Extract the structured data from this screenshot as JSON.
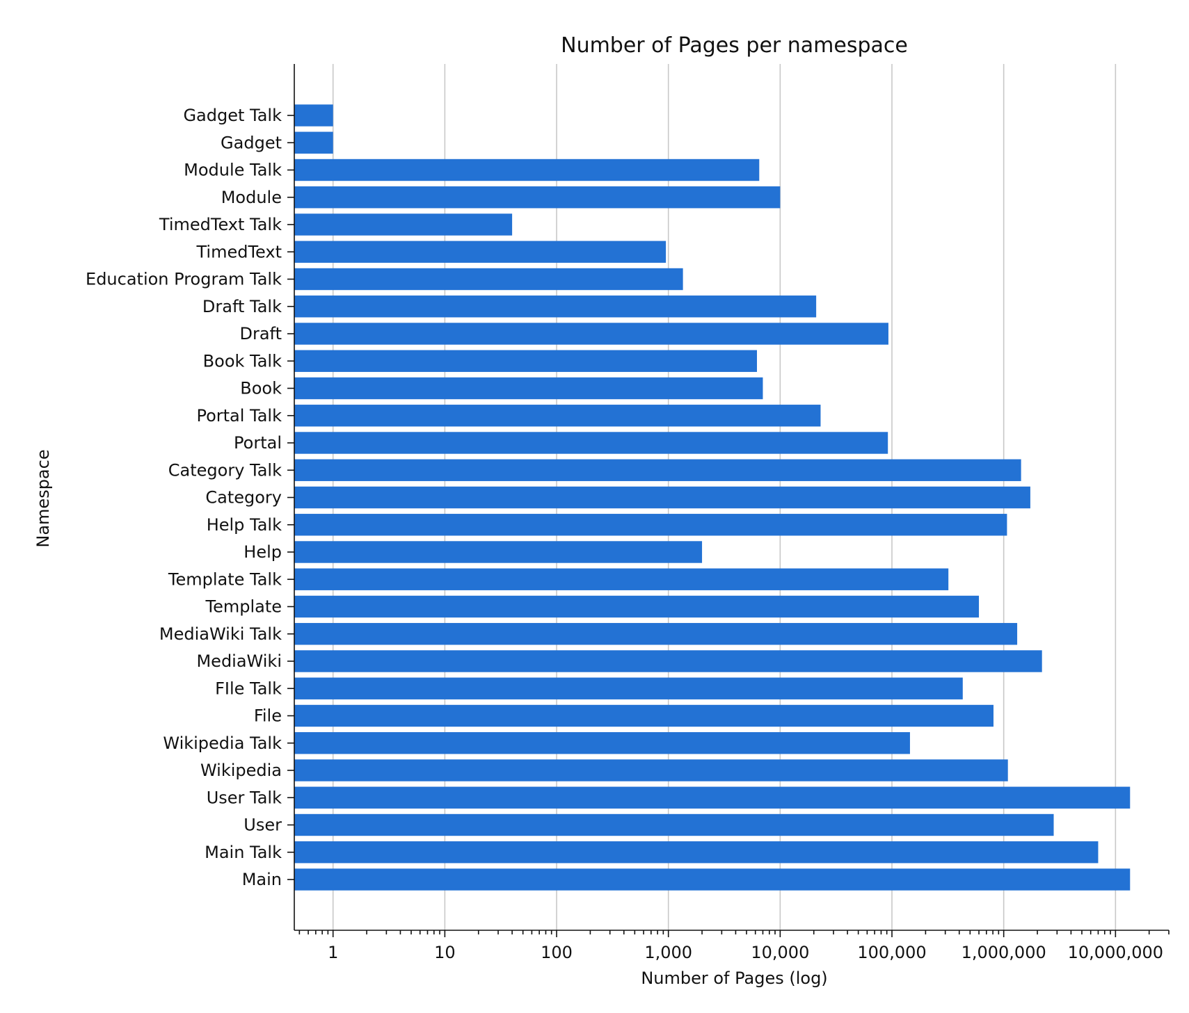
{
  "chart_data": {
    "type": "bar",
    "orientation": "horizontal",
    "title": "Number of Pages per namespace",
    "xlabel": "Number of Pages (log)",
    "ylabel": "Namespace",
    "x_scale": "log",
    "xlim": [
      0.45,
      30000000
    ],
    "x_ticks": [
      1,
      10,
      100,
      1000,
      10000,
      100000,
      1000000,
      10000000
    ],
    "x_tick_labels": [
      "1",
      "10",
      "100",
      "1,000",
      "10,000",
      "100,000",
      "1,000,000",
      "10,000,000"
    ],
    "grid": "vertical",
    "bar_color": "#2372d4",
    "categories": [
      "Gadget Talk",
      "Gadget",
      "Module Talk",
      "Module",
      "TimedText Talk",
      "TimedText",
      "Education Program Talk",
      "Draft Talk",
      "Draft",
      "Book Talk",
      "Book",
      "Portal Talk",
      "Portal",
      "Category Talk",
      "Category",
      "Help Talk",
      "Help",
      "Template Talk",
      "Template",
      "MediaWiki Talk",
      "MediaWiki",
      "FIle Talk",
      "File",
      "Wikipedia Talk",
      "Wikipedia",
      "User Talk",
      "User",
      "Main Talk",
      "Main"
    ],
    "values": [
      1,
      1,
      6500,
      10000,
      40,
      950,
      1350,
      21000,
      93000,
      6200,
      7000,
      23000,
      92000,
      1430000,
      1730000,
      1070000,
      2000,
      320000,
      600000,
      1320000,
      2200000,
      430000,
      810000,
      145000,
      1090000,
      13500000,
      2800000,
      7000000,
      13500000
    ]
  }
}
